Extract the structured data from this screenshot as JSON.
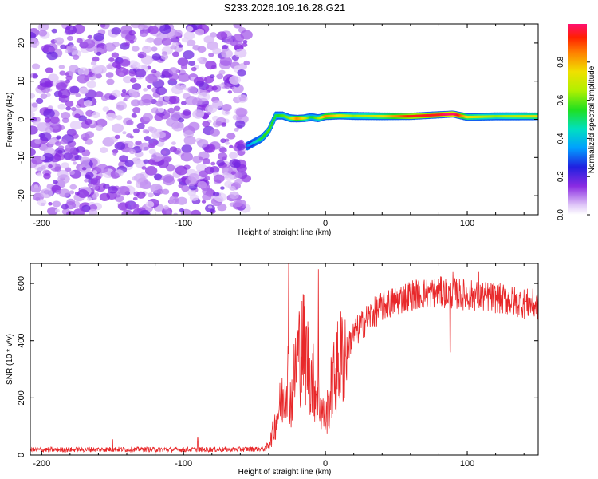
{
  "title": "S233.2026.109.16.28.G21",
  "chart_data": [
    {
      "type": "heatmap",
      "title": "S233.2026.109.16.28.G21",
      "xlabel": "Height of straight line (km)",
      "ylabel": "Frequency (Hz)",
      "xlim": [
        -208,
        150
      ],
      "ylim": [
        -25,
        25
      ],
      "xticks": [
        -200,
        -100,
        0,
        100
      ],
      "yticks": [
        -20,
        -10,
        0,
        10,
        20
      ],
      "noise_region_x": [
        -208,
        -55
      ],
      "frequency_track": {
        "x": [
          -55,
          -50,
          -45,
          -40,
          -35,
          -30,
          -25,
          -20,
          -15,
          -10,
          -5,
          0,
          10,
          20,
          40,
          60,
          80,
          90,
          100,
          120,
          150
        ],
        "y": [
          -7,
          -6,
          -5,
          -3,
          1,
          1,
          0.3,
          0.2,
          0.3,
          0.6,
          0.3,
          0.8,
          1,
          0.9,
          0.8,
          0.8,
          1.2,
          1.4,
          0.6,
          0.8,
          0.8
        ],
        "amplitude": [
          0.3,
          0.4,
          0.5,
          0.55,
          0.5,
          0.55,
          0.6,
          0.8,
          0.7,
          0.5,
          0.6,
          0.8,
          0.7,
          0.6,
          0.7,
          0.9,
          0.9,
          1.0,
          0.7,
          0.6,
          0.7
        ]
      },
      "colorbar": {
        "label": "Normalized spectral amplitude",
        "range": [
          0,
          1
        ],
        "ticks": [
          "0.0",
          "0.2",
          "0.4",
          "0.6",
          "0.8"
        ]
      }
    },
    {
      "type": "line",
      "xlabel": "Height of straight line (km)",
      "ylabel": "SNR (10 * v/v)",
      "xlim": [
        -208,
        150
      ],
      "ylim": [
        0,
        670
      ],
      "xticks": [
        -200,
        -100,
        0,
        100
      ],
      "yticks": [
        0,
        200,
        400,
        600
      ],
      "color": "#e8282a",
      "series_envelope": {
        "x": [
          -208,
          -150,
          -100,
          -60,
          -42,
          -38,
          -34,
          -30,
          -27,
          -24,
          -20,
          -15,
          -10,
          -5,
          0,
          5,
          10,
          20,
          30,
          40,
          60,
          80,
          100,
          120,
          140,
          150
        ],
        "y": [
          18,
          20,
          19,
          20,
          22,
          60,
          140,
          200,
          300,
          180,
          350,
          380,
          280,
          200,
          120,
          250,
          330,
          420,
          480,
          520,
          560,
          570,
          560,
          550,
          530,
          525
        ]
      },
      "spikes": [
        {
          "x": -26,
          "y": 670
        },
        {
          "x": -5,
          "y": 650
        },
        {
          "x": -150,
          "y": 55
        },
        {
          "x": -90,
          "y": 60
        },
        {
          "x": 90,
          "y": 640
        },
        {
          "x": 108,
          "y": 640
        },
        {
          "x": 88,
          "y": 360
        }
      ]
    }
  ]
}
